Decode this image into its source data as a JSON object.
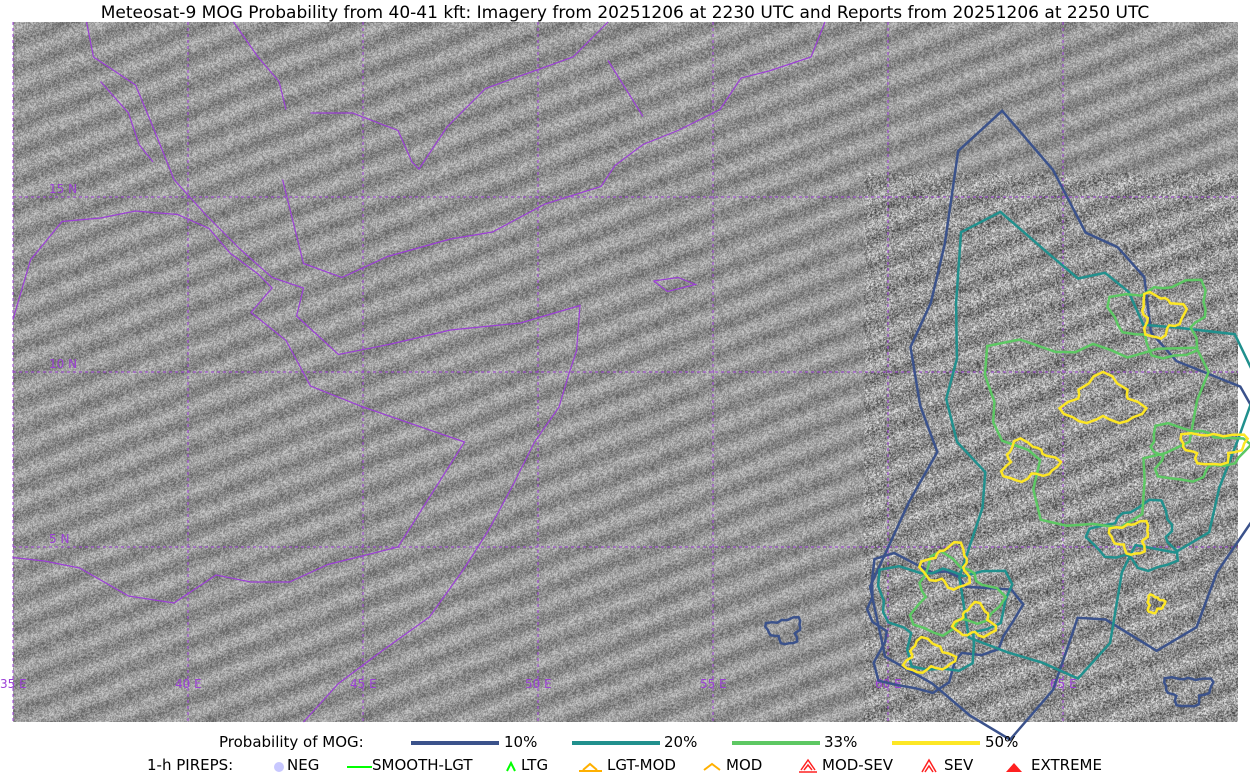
{
  "title": "Meteosat-9 MOG Probability from 40-41 kft: Imagery from 20251206 at 2230 UTC and Reports from 20251206 at 2250 UTC",
  "map": {
    "projection": "lat-lon",
    "lon_range": [
      35,
      70
    ],
    "lat_range": [
      0,
      20
    ],
    "graticule_color": "#9b3fd6",
    "border_color": "#9b3fd6",
    "lon_labels": [
      "35 E",
      "40 E",
      "45 E",
      "50 E",
      "55 E",
      "60 E",
      "65 E"
    ],
    "lat_labels": [
      "15 N",
      "10 N",
      "5 N"
    ]
  },
  "legend": {
    "prob_label": "Probability of MOG:",
    "prob_levels": [
      {
        "label": "10%",
        "color": "#3b528b"
      },
      {
        "label": "20%",
        "color": "#21908d"
      },
      {
        "label": "33%",
        "color": "#5dc863"
      },
      {
        "label": "50%",
        "color": "#fde725"
      }
    ],
    "pirep_label": "1-h PIREPS:",
    "pireps": [
      {
        "label": "NEG",
        "color": "#c8c8ff",
        "icon": "neg-circle-icon"
      },
      {
        "label": "SMOOTH-LGT",
        "color": "#00ff00",
        "icon": "line-icon"
      },
      {
        "label": "LTG",
        "color": "#00ff00",
        "icon": "caret-icon"
      },
      {
        "label": "LGT-MOD",
        "color": "#ffb000",
        "icon": "caret-bar-icon"
      },
      {
        "label": "MOD",
        "color": "#ffb000",
        "icon": "caret-icon"
      },
      {
        "label": "MOD-SEV",
        "color": "#ff2020",
        "icon": "double-caret-bar-icon"
      },
      {
        "label": "SEV",
        "color": "#ff2020",
        "icon": "double-caret-icon"
      },
      {
        "label": "EXTREME",
        "color": "#ff2020",
        "icon": "filled-triangle-icon"
      }
    ]
  }
}
